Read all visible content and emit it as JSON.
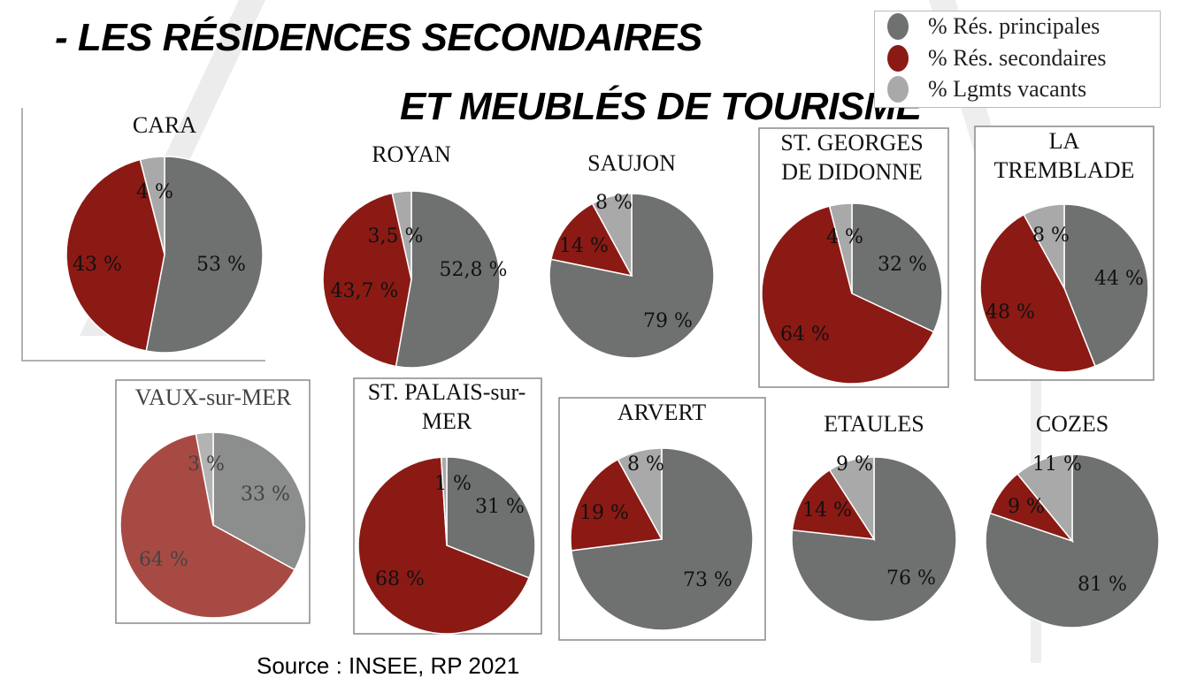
{
  "title_line1": "- LES RÉSIDENCES SECONDAIRES",
  "title_line2": "ET MEUBLÉS DE TOURISME",
  "source": "Source : INSEE, RP 2021",
  "colors": {
    "principal": "#6e716f",
    "secondary": "#8b1a14",
    "vacant": "#a9a9a9"
  },
  "legend": [
    "% Rés. principales",
    "% Rés. secondaires",
    "% Lgmts vacants"
  ],
  "chart_data": [
    {
      "type": "pie",
      "title": "CARA",
      "categories": [
        "% Rés. principales",
        "% Rés. secondaires",
        "% Lgmts vacants"
      ],
      "values": [
        53,
        43,
        4
      ],
      "labels": [
        "53 %",
        "43 %",
        "4 %"
      ]
    },
    {
      "type": "pie",
      "title": "ROYAN",
      "categories": [
        "% Rés. principales",
        "% Rés. secondaires",
        "% Lgmts vacants"
      ],
      "values": [
        52.8,
        43.7,
        3.5
      ],
      "labels": [
        "52,8 %",
        "43,7 %",
        "3,5 %"
      ]
    },
    {
      "type": "pie",
      "title": "SAUJON",
      "categories": [
        "% Rés. principales",
        "% Rés. secondaires",
        "% Lgmts vacants"
      ],
      "values": [
        79,
        14,
        8
      ],
      "labels": [
        "79 %",
        "14 %",
        "8 %"
      ]
    },
    {
      "type": "pie",
      "title": "ST. GEORGES DE DIDONNE",
      "title_lines": [
        "ST. GEORGES",
        "DE DIDONNE"
      ],
      "categories": [
        "% Rés. principales",
        "% Rés. secondaires",
        "% Lgmts vacants"
      ],
      "values": [
        32,
        64,
        4
      ],
      "labels": [
        "32 %",
        "64 %",
        "4 %"
      ]
    },
    {
      "type": "pie",
      "title": "LA TREMBLADE",
      "title_lines": [
        "LA",
        "TREMBLADE"
      ],
      "categories": [
        "% Rés. principales",
        "% Rés. secondaires",
        "% Lgmts vacants"
      ],
      "values": [
        44,
        48,
        8
      ],
      "labels": [
        "44 %",
        "48 %",
        "8 %"
      ]
    },
    {
      "type": "pie",
      "title": "VAUX-sur-MER",
      "categories": [
        "% Rés. principales",
        "% Rés. secondaires",
        "% Lgmts vacants"
      ],
      "values": [
        33,
        64,
        3
      ],
      "labels": [
        "33 %",
        "64 %",
        "3 %"
      ]
    },
    {
      "type": "pie",
      "title": "ST. PALAIS-sur-MER",
      "title_lines": [
        "ST. PALAIS-sur-",
        "MER"
      ],
      "categories": [
        "% Rés. principales",
        "% Rés. secondaires",
        "% Lgmts vacants"
      ],
      "values": [
        31,
        68,
        1
      ],
      "labels": [
        "31 %",
        "68 %",
        "1 %"
      ]
    },
    {
      "type": "pie",
      "title": "ARVERT",
      "categories": [
        "% Rés. principales",
        "% Rés. secondaires",
        "% Lgmts vacants"
      ],
      "values": [
        73,
        19,
        8
      ],
      "labels": [
        "73 %",
        "19 %",
        "8 %"
      ]
    },
    {
      "type": "pie",
      "title": "ETAULES",
      "categories": [
        "% Rés. principales",
        "% Rés. secondaires",
        "% Lgmts vacants"
      ],
      "values": [
        76,
        14,
        9
      ],
      "labels": [
        "76 %",
        "14 %",
        "9 %"
      ]
    },
    {
      "type": "pie",
      "title": "COZES",
      "categories": [
        "% Rés. principales",
        "% Rés. secondaires",
        "% Lgmts vacants"
      ],
      "values": [
        81,
        9,
        11
      ],
      "labels": [
        "81 %",
        "9 %",
        "11 %"
      ]
    }
  ]
}
